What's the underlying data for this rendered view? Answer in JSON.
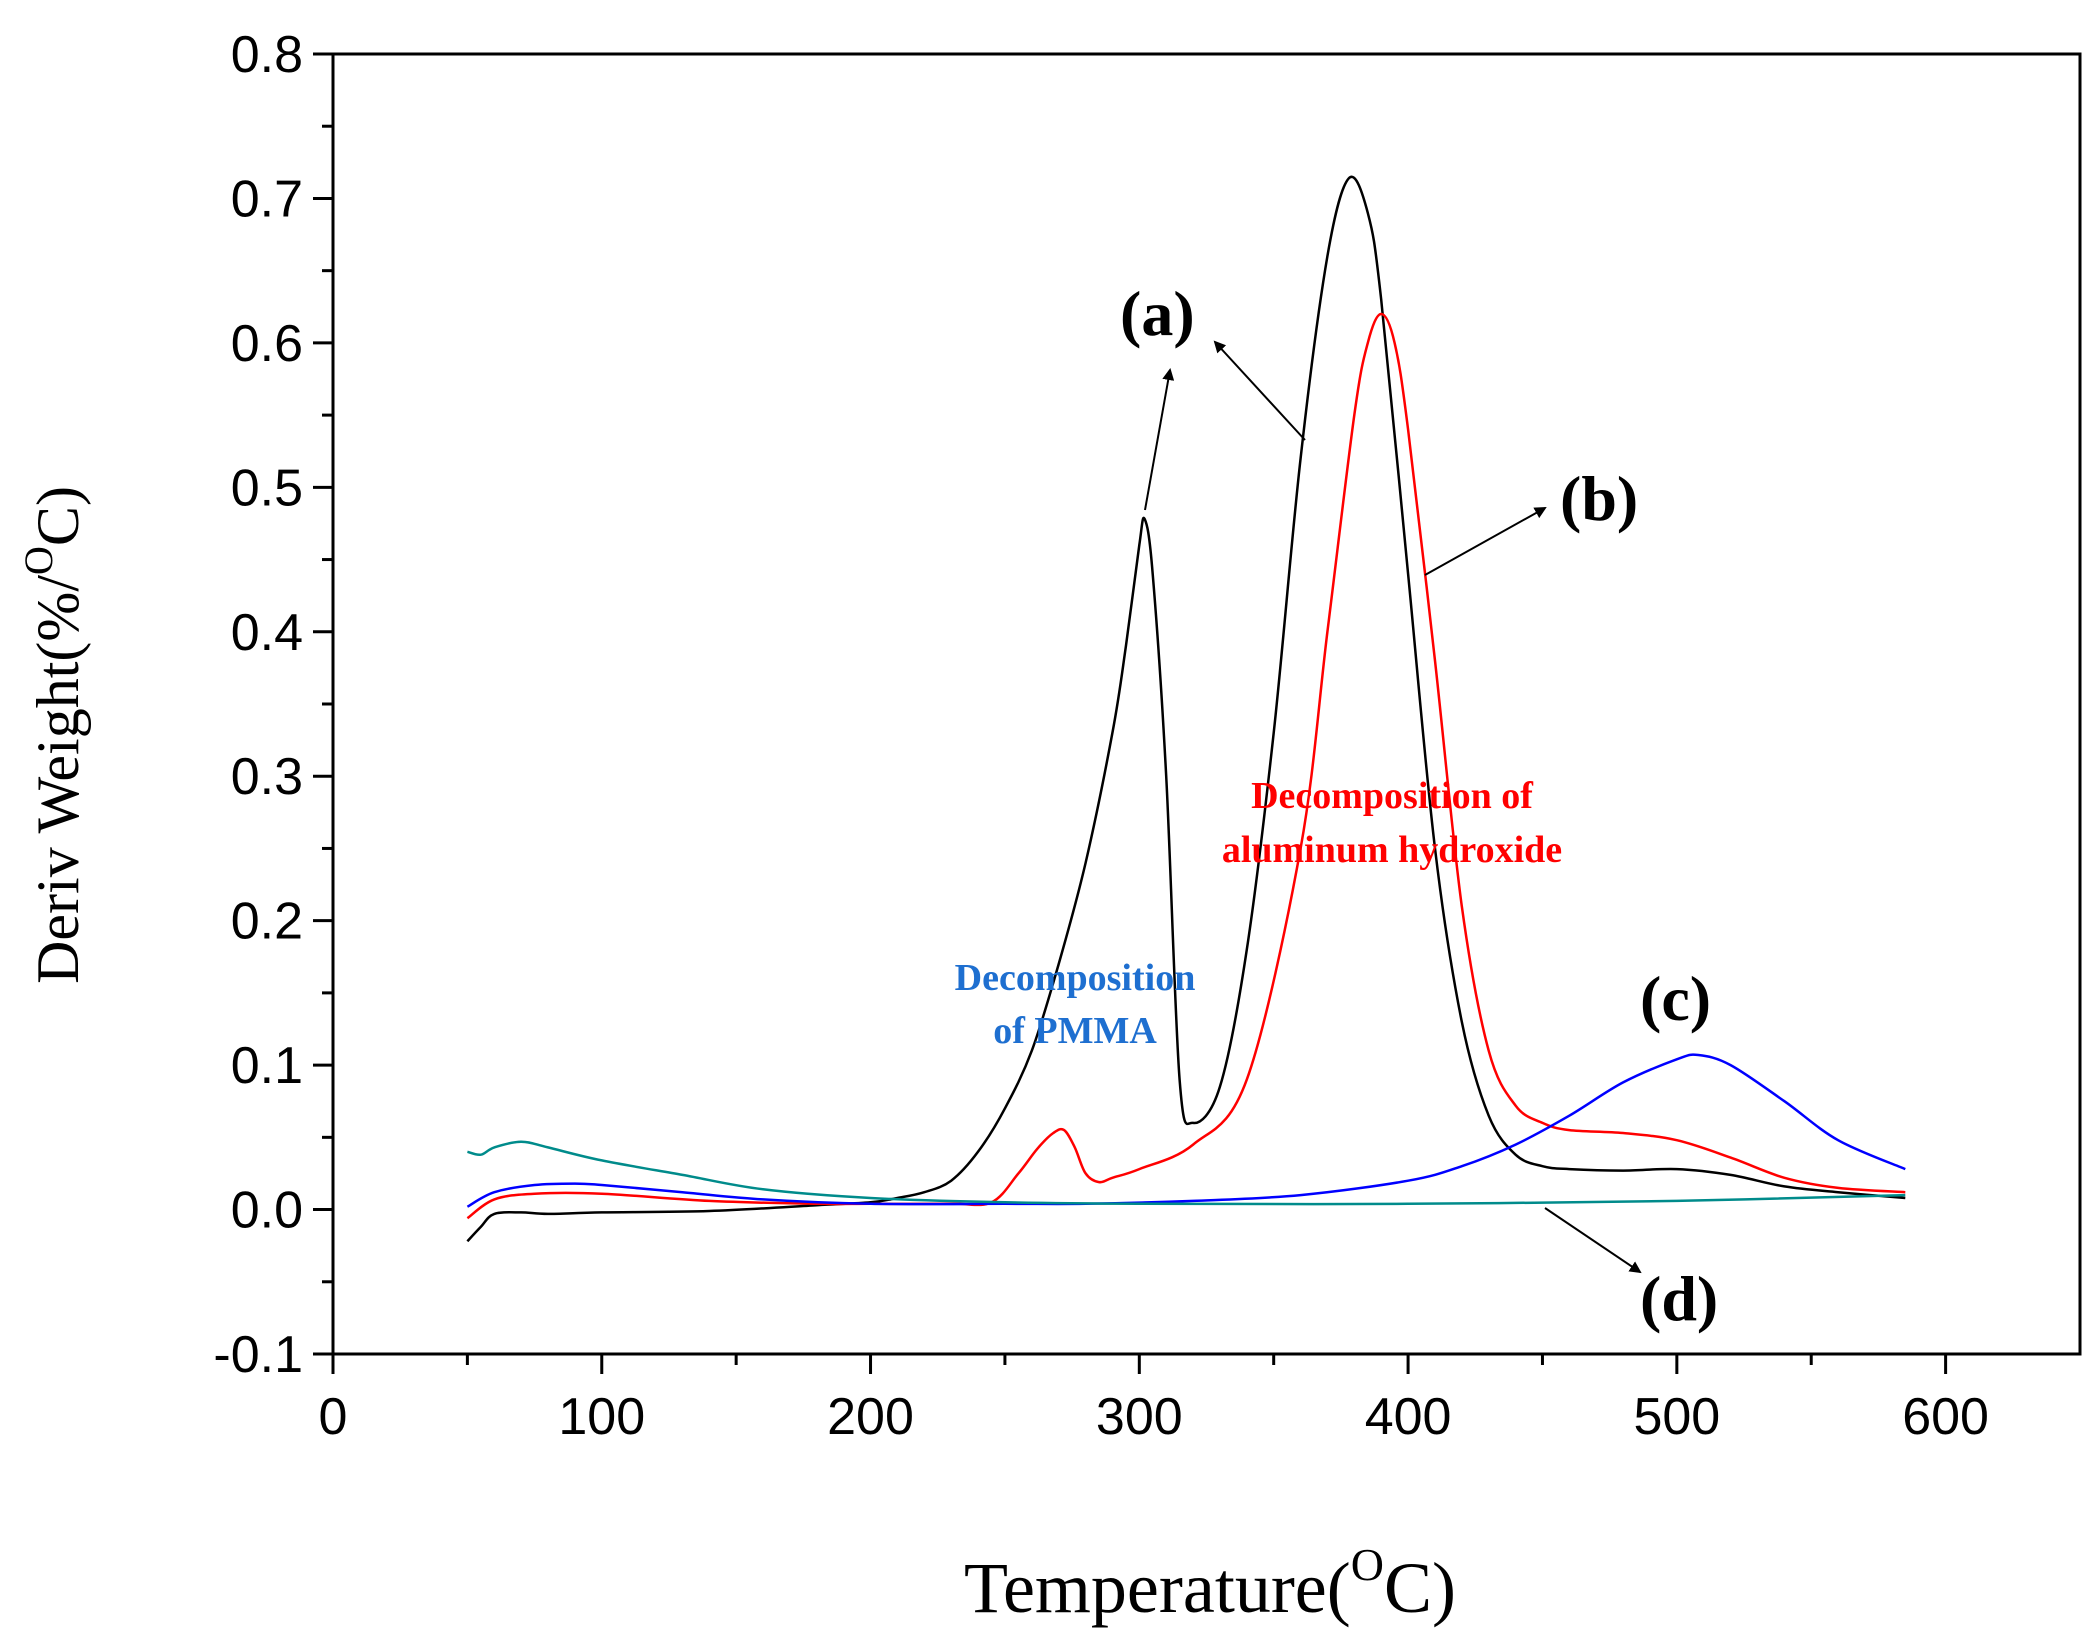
{
  "chart_data": {
    "type": "line",
    "title": "",
    "xlabel_main": "Temperature(",
    "xlabel_sup": "O",
    "xlabel_end": "C)",
    "ylabel_main": "Deriv Weight(%/",
    "ylabel_sup": "O",
    "ylabel_end": "C)",
    "xlim": [
      0,
      650
    ],
    "ylim": [
      -0.1,
      0.8
    ],
    "xticks": [
      0,
      100,
      200,
      300,
      400,
      500,
      600
    ],
    "xtick_labels": [
      "0",
      "100",
      "200",
      "300",
      "400",
      "500",
      "600"
    ],
    "yticks": [
      -0.1,
      0.0,
      0.1,
      0.2,
      0.3,
      0.4,
      0.5,
      0.6,
      0.7,
      0.8
    ],
    "ytick_labels": [
      "-0.1",
      "0.0",
      "0.1",
      "0.2",
      "0.3",
      "0.4",
      "0.5",
      "0.6",
      "0.7",
      "0.8"
    ],
    "series": [
      {
        "name": "(a)",
        "color": "#000000",
        "x": [
          50,
          55,
          60,
          70,
          80,
          100,
          140,
          180,
          200,
          210,
          220,
          230,
          240,
          250,
          260,
          270,
          280,
          290,
          295,
          300,
          302,
          305,
          310,
          315,
          320,
          330,
          340,
          350,
          360,
          370,
          378,
          385,
          390,
          400,
          410,
          420,
          430,
          440,
          450,
          460,
          480,
          500,
          520,
          540,
          560,
          585
        ],
        "y": [
          -0.022,
          -0.012,
          -0.003,
          -0.002,
          -0.003,
          -0.002,
          -0.001,
          0.003,
          0.005,
          0.008,
          0.012,
          0.02,
          0.04,
          0.07,
          0.11,
          0.17,
          0.24,
          0.33,
          0.39,
          0.46,
          0.478,
          0.44,
          0.3,
          0.09,
          0.06,
          0.085,
          0.18,
          0.33,
          0.52,
          0.66,
          0.714,
          0.69,
          0.63,
          0.44,
          0.25,
          0.13,
          0.065,
          0.038,
          0.03,
          0.028,
          0.027,
          0.028,
          0.024,
          0.016,
          0.012,
          0.008
        ]
      },
      {
        "name": "(b)",
        "color": "#ff0000",
        "x": [
          50,
          60,
          75,
          100,
          140,
          180,
          200,
          230,
          245,
          255,
          262,
          268,
          272,
          276,
          280,
          285,
          290,
          300,
          320,
          340,
          360,
          370,
          380,
          385,
          390,
          395,
          400,
          410,
          420,
          430,
          440,
          450,
          460,
          480,
          500,
          520,
          540,
          560,
          585
        ],
        "y": [
          -0.006,
          0.007,
          0.011,
          0.011,
          0.006,
          0.004,
          0.004,
          0.004,
          0.005,
          0.025,
          0.042,
          0.053,
          0.055,
          0.043,
          0.025,
          0.019,
          0.022,
          0.028,
          0.045,
          0.09,
          0.25,
          0.4,
          0.55,
          0.6,
          0.62,
          0.6,
          0.54,
          0.38,
          0.21,
          0.11,
          0.072,
          0.06,
          0.055,
          0.053,
          0.048,
          0.036,
          0.022,
          0.015,
          0.012
        ]
      },
      {
        "name": "(c)",
        "color": "#0000ff",
        "x": [
          50,
          60,
          75,
          90,
          100,
          130,
          160,
          200,
          250,
          280,
          320,
          360,
          400,
          420,
          440,
          460,
          480,
          500,
          508,
          520,
          540,
          560,
          585
        ],
        "y": [
          0.002,
          0.012,
          0.017,
          0.018,
          0.017,
          0.012,
          0.007,
          0.004,
          0.004,
          0.004,
          0.006,
          0.01,
          0.02,
          0.03,
          0.045,
          0.065,
          0.088,
          0.104,
          0.107,
          0.1,
          0.075,
          0.048,
          0.028
        ]
      },
      {
        "name": "(d)",
        "color": "#008b8b",
        "x": [
          50,
          55,
          60,
          70,
          80,
          100,
          130,
          160,
          200,
          250,
          300,
          400,
          500,
          585
        ],
        "y": [
          0.04,
          0.038,
          0.043,
          0.047,
          0.043,
          0.034,
          0.024,
          0.014,
          0.008,
          0.005,
          0.004,
          0.004,
          0.006,
          0.01
        ]
      }
    ],
    "curve_labels": [
      "(a)",
      "(b)",
      "(c)",
      "(d)"
    ],
    "annotations": {
      "pmma_line1": "Decomposition",
      "pmma_line2": "of PMMA",
      "pmma_color": "#1e6fd0",
      "alum_line1": "Decomposition of",
      "alum_line2": "aluminum hydroxide",
      "alum_color": "#ff0000"
    }
  }
}
